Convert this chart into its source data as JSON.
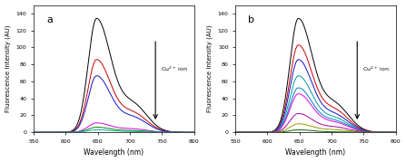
{
  "xlim": [
    550,
    800
  ],
  "ylim": [
    0,
    150
  ],
  "yticks": [
    0,
    20,
    40,
    60,
    80,
    100,
    120,
    140
  ],
  "xlabel": "Wavelength (nm)",
  "ylabel": "Fluorescence Intensity (AU)",
  "peak1": 648,
  "peak2": 705,
  "sigma1": 13,
  "sigma1b": 22,
  "sigma2": 22,
  "panel_a_label": "a",
  "panel_b_label": "b",
  "arrow_text": "Cu$^{2+}$ ion",
  "background_color": "#ffffff",
  "panel_a_curves": [
    {
      "color": "#000000",
      "amp1": 133,
      "amp2": 32
    },
    {
      "color": "#cc0000",
      "amp1": 85,
      "amp2": 22
    },
    {
      "color": "#1111cc",
      "amp1": 66,
      "amp2": 17
    },
    {
      "color": "#dd00dd",
      "amp1": 11,
      "amp2": 4
    },
    {
      "color": "#008800",
      "amp1": 6,
      "amp2": 2
    },
    {
      "color": "#00aaaa",
      "amp1": 3,
      "amp2": 1
    }
  ],
  "panel_b_curves": [
    {
      "color": "#000000",
      "amp1": 133,
      "amp2": 32
    },
    {
      "color": "#cc0000",
      "amp1": 102,
      "amp2": 25
    },
    {
      "color": "#1111cc",
      "amp1": 85,
      "amp2": 20
    },
    {
      "color": "#009999",
      "amp1": 66,
      "amp2": 16
    },
    {
      "color": "#0077cc",
      "amp1": 52,
      "amp2": 13
    },
    {
      "color": "#dd00dd",
      "amp1": 45,
      "amp2": 11
    },
    {
      "color": "#aa00aa",
      "amp1": 22,
      "amp2": 6
    },
    {
      "color": "#999900",
      "amp1": 10,
      "amp2": 3
    },
    {
      "color": "#006600",
      "amp1": 3,
      "amp2": 0.5
    }
  ]
}
